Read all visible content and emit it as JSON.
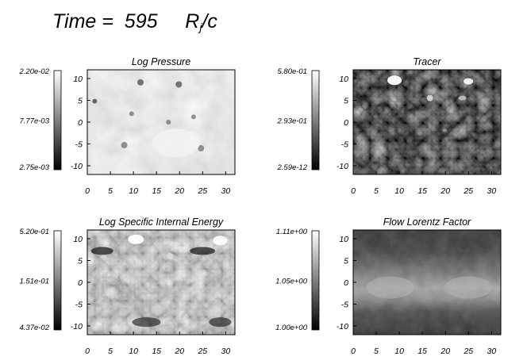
{
  "header": {
    "time_label": "Time =",
    "time_value": "595",
    "unit_main": "R",
    "unit_sub": "j",
    "unit_tail": "/c"
  },
  "chart_data": [
    {
      "type": "heatmap",
      "title": "Log Pressure",
      "colormap": "grayscale",
      "xlim": [
        0,
        32
      ],
      "ylim": [
        -12,
        12
      ],
      "xticks": [
        "0",
        "5",
        "10",
        "15",
        "20",
        "25",
        "30"
      ],
      "yticks": [
        "10",
        "5",
        "0",
        "-5",
        "-10"
      ],
      "colorbar": {
        "max": "2.20e-02",
        "mid": "7.77e-03",
        "min": "2.75e-03"
      }
    },
    {
      "type": "heatmap",
      "title": "Tracer",
      "colormap": "grayscale",
      "xlim": [
        0,
        32
      ],
      "ylim": [
        -12,
        12
      ],
      "xticks": [
        "0",
        "5",
        "10",
        "15",
        "20",
        "25",
        "30"
      ],
      "yticks": [
        "10",
        "5",
        "0",
        "-5",
        "-10"
      ],
      "colorbar": {
        "max": "5.80e-01",
        "mid": "2.93e-01",
        "min": "2.59e-12"
      }
    },
    {
      "type": "heatmap",
      "title": "Log Specific Internal Energy",
      "colormap": "grayscale",
      "xlim": [
        0,
        32
      ],
      "ylim": [
        -12,
        12
      ],
      "xticks": [
        "0",
        "5",
        "10",
        "15",
        "20",
        "25",
        "30"
      ],
      "yticks": [
        "10",
        "5",
        "0",
        "-5",
        "-10"
      ],
      "colorbar": {
        "max": "5.20e-01",
        "mid": "1.51e-01",
        "min": "4.37e-02"
      }
    },
    {
      "type": "heatmap",
      "title": "Flow Lorentz Factor",
      "colormap": "grayscale",
      "xlim": [
        0,
        32
      ],
      "ylim": [
        -12,
        12
      ],
      "xticks": [
        "0",
        "5",
        "10",
        "15",
        "20",
        "25",
        "30"
      ],
      "yticks": [
        "10",
        "5",
        "0",
        "-5",
        "-10"
      ],
      "colorbar": {
        "max": "1.11e+00",
        "mid": "1.05e+00",
        "min": "1.00e+00"
      }
    }
  ]
}
